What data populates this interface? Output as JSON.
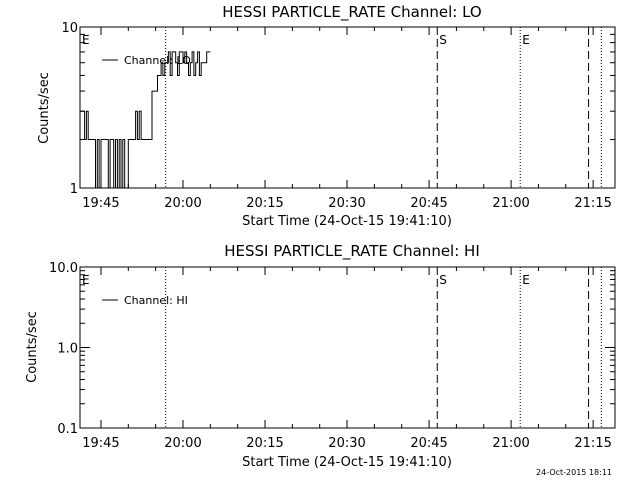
{
  "chart_data": [
    {
      "type": "line",
      "title": "HESSI PARTICLE_RATE Channel: LO",
      "xlabel": "Start Time (24-Oct-15 19:41:10)",
      "ylabel": "Counts/sec",
      "y_scale": "log",
      "xlim": [
        "19:41:10",
        "21:19:00"
      ],
      "ylim": [
        1,
        10
      ],
      "x_tick_labels": [
        "19:45",
        "20:00",
        "20:15",
        "20:30",
        "20:45",
        "21:00",
        "21:15"
      ],
      "y_tick_labels": [
        "1",
        "10"
      ],
      "legend": {
        "entries": [
          "Channel: LO"
        ],
        "placement": "top-left"
      },
      "series": [
        {
          "name": "Channel: LO",
          "x": [
            "19:41:10",
            "19:41:40",
            "19:42:00",
            "19:42:20",
            "19:42:40",
            "19:43:00",
            "19:43:20",
            "19:43:40",
            "19:44:00",
            "19:44:20",
            "19:44:40",
            "19:45:00",
            "19:45:20",
            "19:45:40",
            "19:46:00",
            "19:46:20",
            "19:46:40",
            "19:47:00",
            "19:47:20",
            "19:47:40",
            "19:48:00",
            "19:48:20",
            "19:48:40",
            "19:49:00",
            "19:49:20",
            "19:49:40",
            "19:50:00",
            "19:50:20",
            "19:50:40",
            "19:51:00",
            "19:51:20",
            "19:51:40",
            "19:52:00",
            "19:52:20",
            "19:52:40",
            "19:53:00",
            "19:53:20",
            "19:53:40",
            "19:54:00",
            "19:54:20",
            "19:54:40",
            "19:55:00",
            "19:55:20",
            "19:55:40",
            "19:56:00",
            "19:56:20",
            "19:56:40",
            "19:57:00",
            "19:57:20",
            "19:57:40",
            "19:58:00",
            "19:58:20",
            "19:58:40",
            "19:59:00",
            "19:59:20",
            "19:59:40",
            "20:00:00",
            "20:00:20",
            "20:00:40",
            "20:01:00",
            "20:01:20",
            "20:01:40",
            "20:02:00",
            "20:02:20",
            "20:02:40",
            "20:03:00",
            "20:03:20",
            "20:03:40",
            "20:04:00",
            "20:04:20",
            "20:04:40",
            "20:05:00"
          ],
          "y": [
            3,
            3,
            2,
            3,
            2,
            2,
            2,
            2,
            1,
            2,
            1,
            2,
            2,
            2,
            2,
            1,
            2,
            2,
            1,
            2,
            1,
            2,
            1,
            2,
            1,
            1,
            2,
            2,
            2,
            2,
            3,
            2,
            3,
            2,
            2,
            2,
            2,
            2,
            2,
            4,
            4,
            4,
            5,
            5,
            6,
            5,
            6,
            6,
            7,
            5,
            7,
            7,
            6,
            5,
            7,
            7,
            6,
            7,
            6,
            5,
            6,
            7,
            5,
            6,
            7,
            5,
            6,
            6,
            6,
            7,
            7,
            7
          ]
        }
      ],
      "vertical_markers": [
        {
          "label": "E",
          "x": "19:41:10",
          "style": "dotted"
        },
        {
          "label": "",
          "x": "19:56:50",
          "style": "dotted"
        },
        {
          "label": "S",
          "x": "20:46:30",
          "style": "dashed"
        },
        {
          "label": "E",
          "x": "21:01:40",
          "style": "dotted"
        },
        {
          "label": "",
          "x": "21:14:10",
          "style": "dashed"
        },
        {
          "label": "",
          "x": "21:16:30",
          "style": "dotted"
        }
      ],
      "grid": false
    },
    {
      "type": "line",
      "title": "HESSI PARTICLE_RATE Channel: HI",
      "xlabel": "Start Time (24-Oct-15 19:41:10)",
      "ylabel": "Counts/sec",
      "y_scale": "log",
      "xlim": [
        "19:41:10",
        "21:19:00"
      ],
      "ylim": [
        0.1,
        10.0
      ],
      "x_tick_labels": [
        "19:45",
        "20:00",
        "20:15",
        "20:30",
        "20:45",
        "21:00",
        "21:15"
      ],
      "y_tick_labels": [
        "0.1",
        "1.0",
        "10.0"
      ],
      "legend": {
        "entries": [
          "Channel: HI"
        ],
        "placement": "top-left"
      },
      "series": [
        {
          "name": "Channel: HI",
          "x": [],
          "y": []
        }
      ],
      "vertical_markers": [
        {
          "label": "E",
          "x": "19:41:10",
          "style": "dotted"
        },
        {
          "label": "",
          "x": "19:56:50",
          "style": "dotted"
        },
        {
          "label": "S",
          "x": "20:46:30",
          "style": "dashed"
        },
        {
          "label": "E",
          "x": "21:01:40",
          "style": "dotted"
        },
        {
          "label": "",
          "x": "21:14:10",
          "style": "dashed"
        },
        {
          "label": "",
          "x": "21:16:30",
          "style": "dotted"
        }
      ],
      "grid": false
    }
  ],
  "footer": {
    "timestamp": "24-Oct-2015 18:11"
  }
}
